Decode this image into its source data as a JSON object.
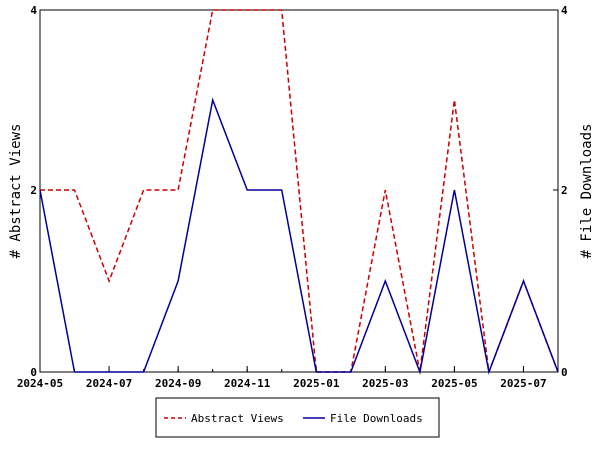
{
  "chart_data": {
    "type": "line",
    "title": "",
    "x": [
      "2024-05",
      "2024-06",
      "2024-07",
      "2024-08",
      "2024-09",
      "2024-10",
      "2024-11",
      "2024-12",
      "2025-01",
      "2025-02",
      "2025-03",
      "2025-04",
      "2025-05",
      "2025-06",
      "2025-07",
      "2025-08"
    ],
    "x_tick_labels": [
      "2024-05",
      "2024-07",
      "2024-09",
      "2024-11",
      "2025-01",
      "2025-03",
      "2025-05",
      "2025-07"
    ],
    "y_left_label": "# Abstract Views",
    "y_right_label": "# File Downloads",
    "ylim": [
      0,
      4
    ],
    "y_tick_labels": [
      "0",
      "2",
      "4"
    ],
    "y_scale": "linear-low, compressed above 2",
    "series": [
      {
        "name": "Abstract Views",
        "color": "#cc0000",
        "style": "dashed",
        "axis": "left",
        "values": [
          2,
          2,
          1,
          2,
          2,
          4,
          4,
          4,
          0,
          0,
          2,
          0,
          3,
          0,
          1,
          0
        ]
      },
      {
        "name": "File Downloads",
        "color": "#000099",
        "style": "solid",
        "axis": "right",
        "values": [
          2,
          0,
          0,
          0,
          1,
          3,
          2,
          2,
          0,
          0,
          1,
          0,
          2,
          0,
          1,
          0
        ]
      }
    ],
    "legend": {
      "position": "bottom-center"
    },
    "grid": false
  }
}
